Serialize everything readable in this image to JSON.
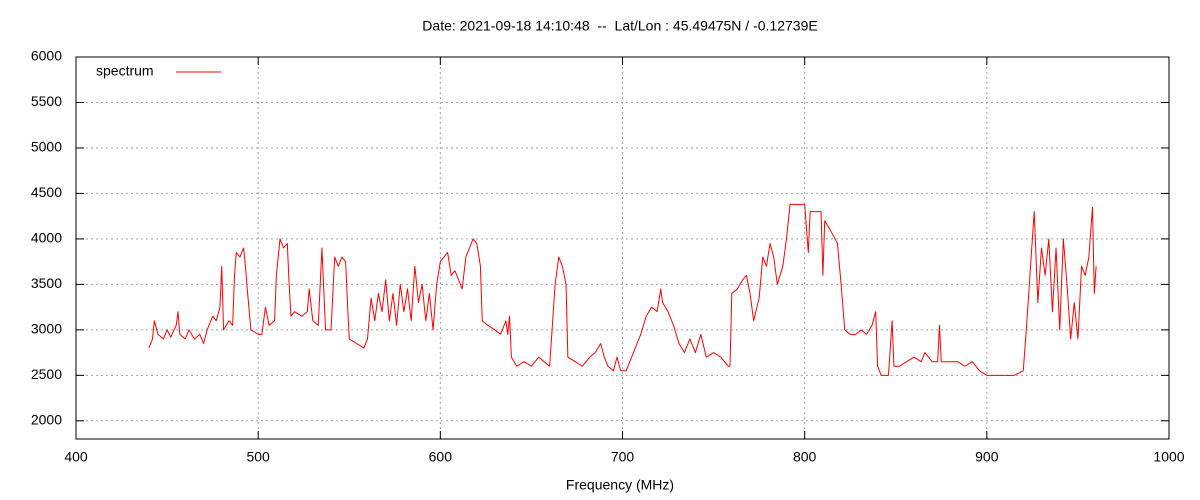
{
  "chart_data": {
    "type": "line",
    "title": "Date: 2021-09-18 14:10:48  --  Lat/Lon : 45.49475N / -0.12739E",
    "x_label": "Frequency (MHz)",
    "xlim": [
      400,
      1000
    ],
    "xticks": [
      400,
      500,
      600,
      700,
      800,
      900,
      1000
    ],
    "ylim": [
      1800,
      6000
    ],
    "yticks": [
      2000,
      2500,
      3000,
      3500,
      4000,
      4500,
      5000,
      5500,
      6000
    ],
    "grid": true,
    "legend": "top-left",
    "x": [
      440,
      442,
      443,
      445,
      448,
      450,
      452,
      455,
      456,
      457,
      460,
      462,
      465,
      468,
      470,
      472,
      475,
      477,
      479,
      480,
      481,
      484,
      486,
      487,
      488,
      490,
      492,
      493,
      494,
      496,
      500,
      502,
      504,
      506,
      509,
      510,
      512,
      514,
      516,
      517,
      518,
      520,
      524,
      527,
      528,
      530,
      533,
      535,
      537,
      540,
      542,
      544,
      546,
      548,
      549,
      550,
      554,
      558,
      560,
      562,
      564,
      566,
      568,
      570,
      572,
      574,
      576,
      578,
      580,
      582,
      584,
      586,
      588,
      590,
      592,
      594,
      596,
      598,
      600,
      602,
      604,
      606,
      608,
      610,
      612,
      614,
      616,
      618,
      620,
      622,
      623,
      626,
      630,
      633,
      636,
      637,
      638,
      639,
      642,
      646,
      650,
      654,
      657,
      660,
      663,
      665,
      667,
      669,
      670,
      674,
      678,
      682,
      685,
      688,
      690,
      692,
      695,
      697,
      699,
      702,
      704,
      707,
      710,
      713,
      716,
      719,
      721,
      722,
      725,
      728,
      731,
      734,
      737,
      740,
      743,
      746,
      750,
      754,
      758,
      759,
      760,
      763,
      766,
      768,
      770,
      772,
      775,
      777,
      779,
      781,
      783,
      785,
      788,
      790,
      792,
      796,
      800,
      802,
      803,
      806,
      809,
      810,
      811,
      814,
      818,
      820,
      822,
      825,
      828,
      831,
      834,
      837,
      839,
      840,
      842,
      846,
      848,
      849,
      852,
      856,
      860,
      864,
      866,
      870,
      873,
      874,
      875,
      880,
      884,
      888,
      892,
      896,
      900,
      905,
      910,
      915,
      920,
      922,
      924,
      926,
      928,
      930,
      932,
      934,
      936,
      938,
      940,
      942,
      944,
      946,
      948,
      950,
      952,
      954,
      956,
      958,
      959,
      960
    ],
    "series": [
      {
        "name": "spectrum",
        "color": "#ff0000",
        "values": [
          2800,
          2900,
          3100,
          2950,
          2900,
          3000,
          2920,
          3050,
          3200,
          2950,
          2900,
          3000,
          2900,
          2950,
          2850,
          3000,
          3150,
          3100,
          3250,
          3700,
          3000,
          3100,
          3050,
          3600,
          3850,
          3800,
          3900,
          3700,
          3450,
          3000,
          2950,
          2950,
          3250,
          3050,
          3100,
          3600,
          4000,
          3900,
          3950,
          3500,
          3150,
          3200,
          3150,
          3200,
          3450,
          3100,
          3050,
          3900,
          3000,
          3000,
          3800,
          3700,
          3800,
          3750,
          3300,
          2900,
          2850,
          2800,
          2900,
          3350,
          3100,
          3400,
          3200,
          3550,
          3100,
          3400,
          3050,
          3500,
          3200,
          3450,
          3100,
          3700,
          3300,
          3500,
          3100,
          3400,
          3000,
          3500,
          3750,
          3800,
          3850,
          3600,
          3650,
          3550,
          3450,
          3800,
          3900,
          4000,
          3950,
          3700,
          3100,
          3050,
          3000,
          2950,
          3100,
          2950,
          3150,
          2700,
          2600,
          2650,
          2600,
          2700,
          2650,
          2600,
          3500,
          3800,
          3700,
          3500,
          2700,
          2650,
          2600,
          2700,
          2750,
          2850,
          2700,
          2600,
          2550,
          2700,
          2550,
          2550,
          2650,
          2800,
          2950,
          3150,
          3250,
          3200,
          3450,
          3300,
          3200,
          3050,
          2850,
          2750,
          2900,
          2750,
          2950,
          2700,
          2750,
          2700,
          2600,
          2600,
          3400,
          3450,
          3550,
          3600,
          3400,
          3100,
          3350,
          3800,
          3700,
          3950,
          3800,
          3500,
          3700,
          4000,
          4380,
          4380,
          4380,
          3850,
          4300,
          4300,
          4300,
          3600,
          4200,
          4100,
          3950,
          3500,
          3000,
          2950,
          2950,
          3000,
          2950,
          3050,
          3200,
          2600,
          2500,
          2500,
          3100,
          2600,
          2600,
          2650,
          2700,
          2650,
          2750,
          2650,
          2650,
          3050,
          2650,
          2650,
          2650,
          2600,
          2650,
          2550,
          2500,
          2500,
          2500,
          2500,
          2550,
          3100,
          3700,
          4300,
          3300,
          3900,
          3600,
          4000,
          3200,
          3900,
          3000,
          4000,
          3500,
          2900,
          3300,
          2900,
          3700,
          3600,
          3800,
          4350,
          3400,
          3700
        ]
      }
    ]
  }
}
